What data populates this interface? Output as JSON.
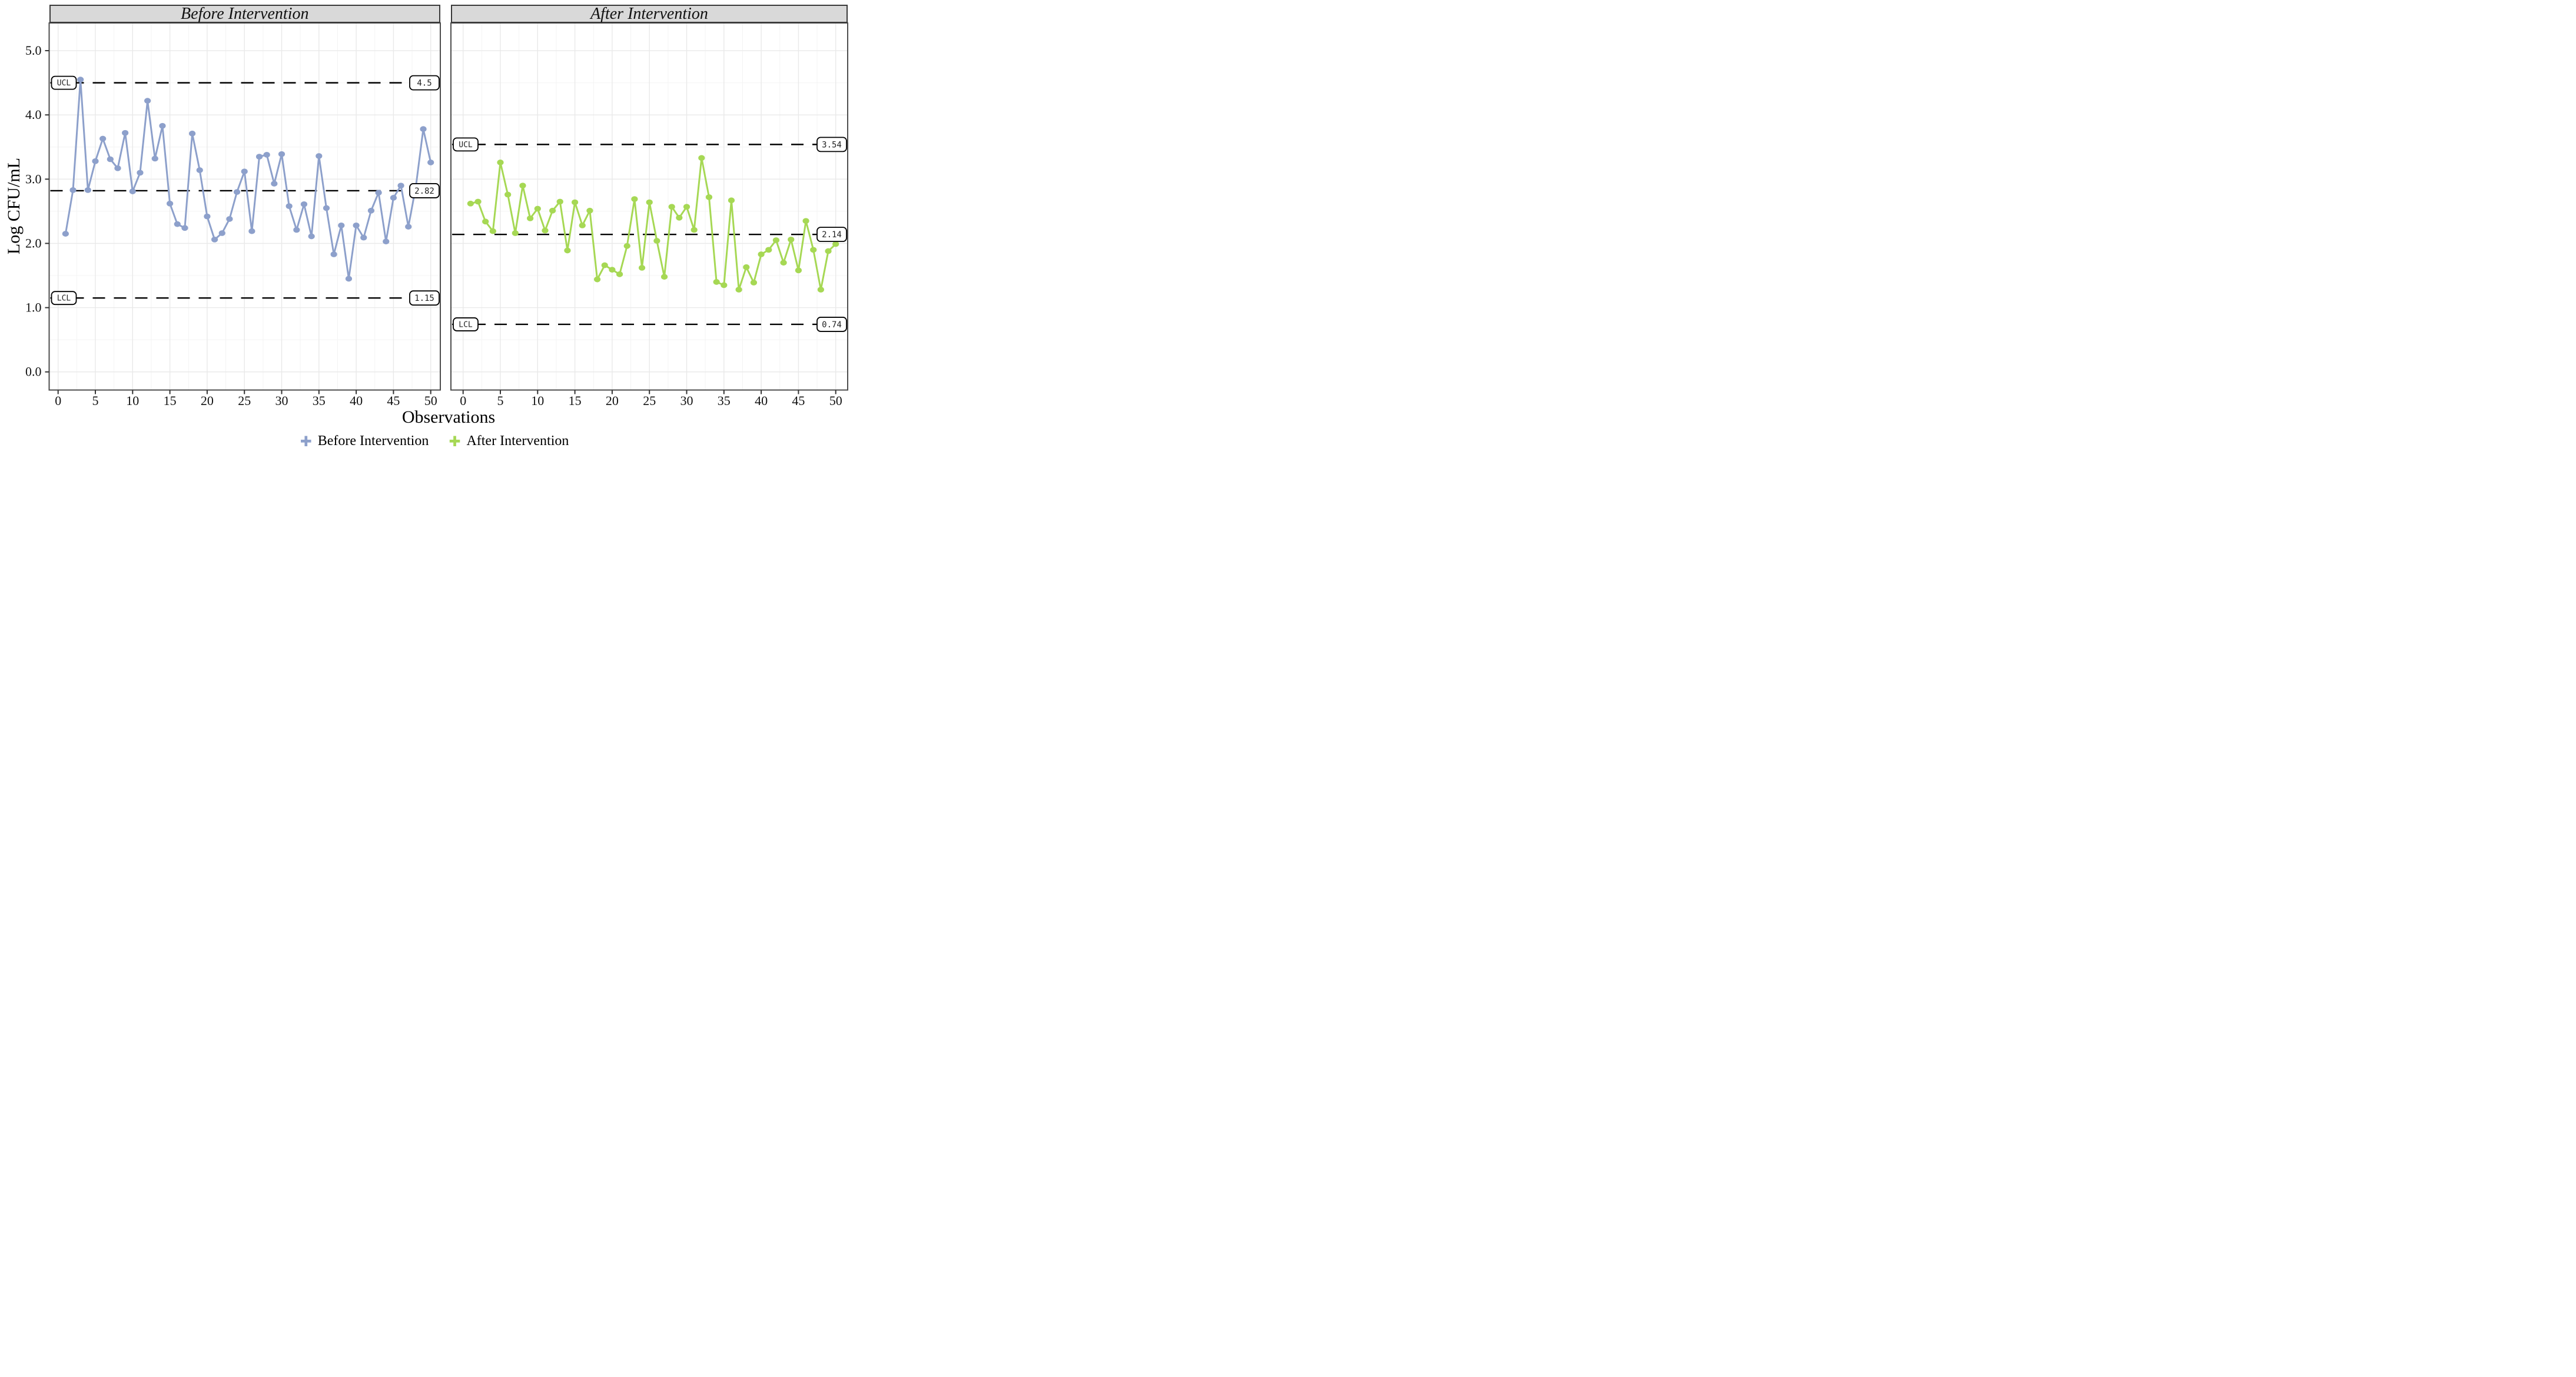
{
  "axes": {
    "x_label": "Observations",
    "y_label": "Log CFU/mL",
    "x_ticks": [
      0,
      5,
      10,
      15,
      20,
      25,
      30,
      35,
      40,
      45,
      50
    ],
    "y_ticks": [
      "0.0",
      "1.0",
      "2.0",
      "3.0",
      "4.0",
      "5.0"
    ],
    "x_range": [
      0,
      50
    ],
    "y_range": [
      0,
      5
    ]
  },
  "legend": {
    "items": [
      {
        "label": "Before Intervention",
        "color": "#8DA0CB"
      },
      {
        "label": "After Intervention",
        "color": "#A6D854"
      }
    ]
  },
  "colors": {
    "before": "#8DA0CB",
    "after": "#A6D854",
    "strip_bg": "#D9D9D9",
    "strip_border": "#3A3A3A",
    "panel_border": "#4D4D4D",
    "grid_major": "#E9E9E9",
    "grid_minor": "#F4F4F4",
    "control_line": "#000000",
    "tick": "#333333"
  },
  "chart_data": [
    {
      "type": "line",
      "panel_title": "Before Intervention",
      "series_name": "Before Intervention",
      "color": "#8DA0CB",
      "x": [
        1,
        2,
        3,
        4,
        5,
        6,
        7,
        8,
        9,
        10,
        11,
        12,
        13,
        14,
        15,
        16,
        17,
        18,
        19,
        20,
        21,
        22,
        23,
        24,
        25,
        26,
        27,
        28,
        29,
        30,
        31,
        32,
        33,
        34,
        35,
        36,
        37,
        38,
        39,
        40,
        41,
        42,
        43,
        44,
        45,
        46,
        47,
        48,
        49,
        50
      ],
      "values": [
        2.15,
        2.83,
        4.55,
        2.83,
        3.28,
        3.63,
        3.31,
        3.17,
        3.72,
        2.81,
        3.1,
        4.22,
        3.32,
        3.83,
        2.62,
        2.3,
        2.24,
        3.71,
        3.14,
        2.42,
        2.06,
        2.16,
        2.38,
        2.8,
        3.12,
        2.19,
        3.35,
        3.38,
        2.93,
        3.39,
        2.58,
        2.21,
        2.61,
        2.11,
        3.36,
        2.55,
        1.83,
        2.28,
        1.45,
        2.28,
        2.09,
        2.51,
        2.79,
        2.03,
        2.71,
        2.9,
        2.26,
        2.88,
        3.78,
        3.26
      ],
      "ucl": {
        "label": "UCL",
        "value": 4.5,
        "display": "4.5"
      },
      "center": {
        "value": 2.82,
        "display": "2.82"
      },
      "lcl": {
        "label": "LCL",
        "value": 1.15,
        "display": "1.15"
      }
    },
    {
      "type": "line",
      "panel_title": "After Intervention",
      "series_name": "After Intervention",
      "color": "#A6D854",
      "x": [
        1,
        2,
        3,
        4,
        5,
        6,
        7,
        8,
        9,
        10,
        11,
        12,
        13,
        14,
        15,
        16,
        17,
        18,
        19,
        20,
        21,
        22,
        23,
        24,
        25,
        26,
        27,
        28,
        29,
        30,
        31,
        32,
        33,
        34,
        35,
        36,
        37,
        38,
        39,
        40,
        41,
        42,
        43,
        44,
        45,
        46,
        47,
        48,
        49,
        50
      ],
      "values": [
        2.62,
        2.65,
        2.34,
        2.19,
        3.26,
        2.76,
        2.16,
        2.9,
        2.39,
        2.54,
        2.2,
        2.51,
        2.65,
        1.89,
        2.64,
        2.28,
        2.51,
        1.44,
        1.66,
        1.59,
        1.52,
        1.96,
        2.69,
        1.62,
        2.64,
        2.04,
        1.48,
        2.57,
        2.4,
        2.57,
        2.21,
        3.33,
        2.72,
        1.4,
        1.35,
        2.67,
        1.28,
        1.63,
        1.39,
        1.83,
        1.9,
        2.05,
        1.7,
        2.06,
        1.58,
        2.35,
        1.9,
        1.28,
        1.88,
        1.99
      ],
      "ucl": {
        "label": "UCL",
        "value": 3.54,
        "display": "3.54"
      },
      "center": {
        "value": 2.14,
        "display": "2.14"
      },
      "lcl": {
        "label": "LCL",
        "value": 0.74,
        "display": "0.74"
      }
    }
  ]
}
